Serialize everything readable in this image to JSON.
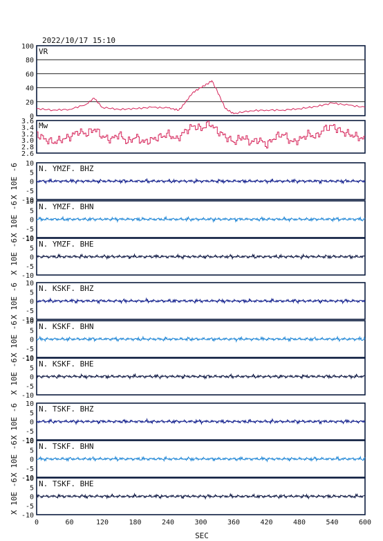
{
  "header": {
    "timestamp": "2022/10/17 15:10"
  },
  "xaxis": {
    "label": "SEC",
    "ticks": [
      "0",
      "60",
      "120",
      "180",
      "240",
      "300",
      "360",
      "420",
      "480",
      "540",
      "600"
    ],
    "range": [
      0,
      600
    ]
  },
  "panels": {
    "vr": {
      "label": "VR",
      "yticks": [
        "100",
        "80",
        "60",
        "40",
        "20",
        "0"
      ],
      "color": "#d6245a"
    },
    "mw": {
      "label": "Mw",
      "yticks": [
        "3.6",
        "3.4",
        "3.2",
        "3.0",
        "2.8",
        "2.6"
      ],
      "color": "#d6245a"
    },
    "unit_label": "X 10E -6",
    "wave_yticks": [
      "10",
      "5",
      "0",
      "-5",
      "-10"
    ],
    "waves": [
      {
        "station": "N. YMZF. BHZ",
        "color": "#0c1a8a"
      },
      {
        "station": "N. YMZF. BHN",
        "color": "#1f86d6"
      },
      {
        "station": "N. YMZF. BHE",
        "color": "#0a1440"
      },
      {
        "station": "N. KSKF. BHZ",
        "color": "#0c1a8a"
      },
      {
        "station": "N. KSKF. BHN",
        "color": "#1f86d6"
      },
      {
        "station": "N. KSKF. BHE",
        "color": "#0a1440"
      },
      {
        "station": "N. TSKF. BHZ",
        "color": "#0c1a8a"
      },
      {
        "station": "N. TSKF. BHN",
        "color": "#1f86d6"
      },
      {
        "station": "N. TSKF. BHE",
        "color": "#0a1440"
      }
    ]
  },
  "chart_data": [
    {
      "type": "line",
      "series": [
        {
          "name": "VR",
          "x": [
            0,
            30,
            60,
            90,
            105,
            120,
            150,
            180,
            210,
            240,
            260,
            270,
            285,
            300,
            315,
            320,
            330,
            345,
            360,
            390,
            420,
            450,
            480,
            510,
            540,
            570,
            600
          ],
          "values": [
            10,
            8,
            9,
            16,
            25,
            12,
            9,
            10,
            12,
            11,
            8,
            17,
            33,
            40,
            47,
            50,
            35,
            10,
            3,
            7,
            8,
            8,
            10,
            13,
            18,
            15,
            12
          ]
        }
      ],
      "ylim": [
        0,
        100
      ]
    },
    {
      "type": "line",
      "series": [
        {
          "name": "Mw",
          "x": [
            0,
            15,
            30,
            45,
            60,
            75,
            90,
            105,
            120,
            135,
            150,
            165,
            180,
            195,
            210,
            225,
            240,
            255,
            270,
            285,
            300,
            315,
            330,
            345,
            360,
            375,
            390,
            405,
            420,
            435,
            450,
            465,
            480,
            495,
            510,
            525,
            540,
            555,
            570,
            585,
            600
          ],
          "values": [
            3.2,
            3.0,
            2.9,
            3.0,
            3.1,
            3.3,
            3.2,
            3.4,
            3.1,
            3.0,
            3.2,
            2.9,
            3.1,
            2.9,
            3.0,
            3.1,
            3.2,
            3.0,
            3.3,
            3.5,
            3.4,
            3.6,
            3.3,
            3.1,
            2.9,
            3.1,
            2.9,
            3.0,
            2.8,
            3.1,
            3.2,
            2.9,
            3.0,
            3.2,
            3.1,
            3.4,
            3.5,
            3.3,
            3.2,
            3.1,
            3.0
          ]
        }
      ],
      "ylim": [
        2.5,
        3.7
      ]
    }
  ]
}
